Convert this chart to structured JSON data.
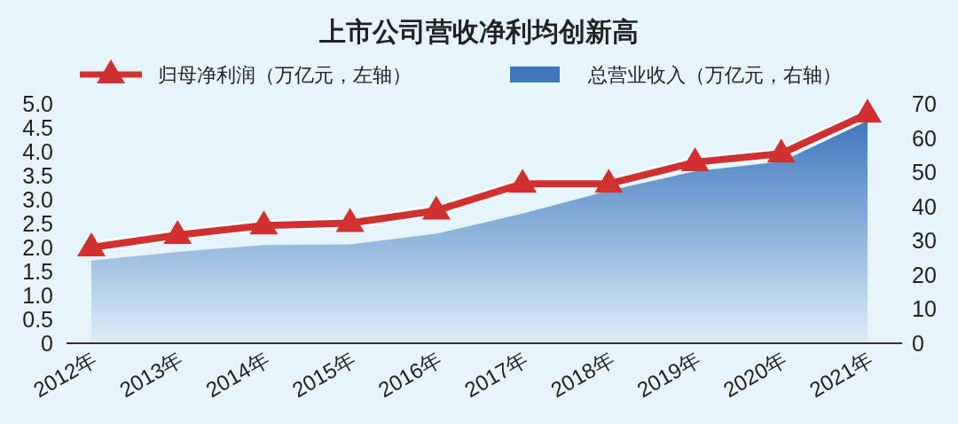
{
  "chart_data": {
    "type": "line",
    "title": "上市公司营收净利均创新高",
    "categories": [
      "2012年",
      "2013年",
      "2014年",
      "2015年",
      "2016年",
      "2017年",
      "2018年",
      "2019年",
      "2020年",
      "2021年"
    ],
    "series": [
      {
        "name": "归母净利润（万亿元，左轴）",
        "marker": "triangle",
        "color": "#d03030",
        "values": [
          2.0,
          2.26,
          2.46,
          2.51,
          2.77,
          3.33,
          3.33,
          3.78,
          3.96,
          4.79
        ]
      },
      {
        "name": "总营业收入（万亿元，右轴）",
        "type": "area",
        "axis": "y2",
        "color": "#3f78bd",
        "values": [
          24.2,
          26.7,
          28.7,
          28.9,
          32.0,
          37.9,
          44.6,
          50.3,
          53.1,
          65.0
        ]
      }
    ],
    "ylim": [
      0,
      5
    ],
    "yticks": [
      0,
      {
        "value": 0.5,
        "label": "0.5"
      },
      {
        "value": 1,
        "label": "1.0"
      },
      {
        "value": 1.5,
        "label": "1.5"
      },
      {
        "value": 2,
        "label": "2.0"
      },
      {
        "value": 2.5,
        "label": "2.5"
      },
      {
        "value": 3,
        "label": "3.0"
      },
      {
        "value": 3.5,
        "label": "3.5"
      },
      {
        "value": 4,
        "label": "4.0"
      },
      {
        "value": 4.5,
        "label": "4.5"
      },
      {
        "value": 5,
        "label": "5.0"
      }
    ],
    "y2lim": [
      0,
      70
    ],
    "y2ticks": [
      0,
      10,
      20,
      30,
      40,
      50,
      60,
      70
    ],
    "legend": "top",
    "grid": false
  }
}
